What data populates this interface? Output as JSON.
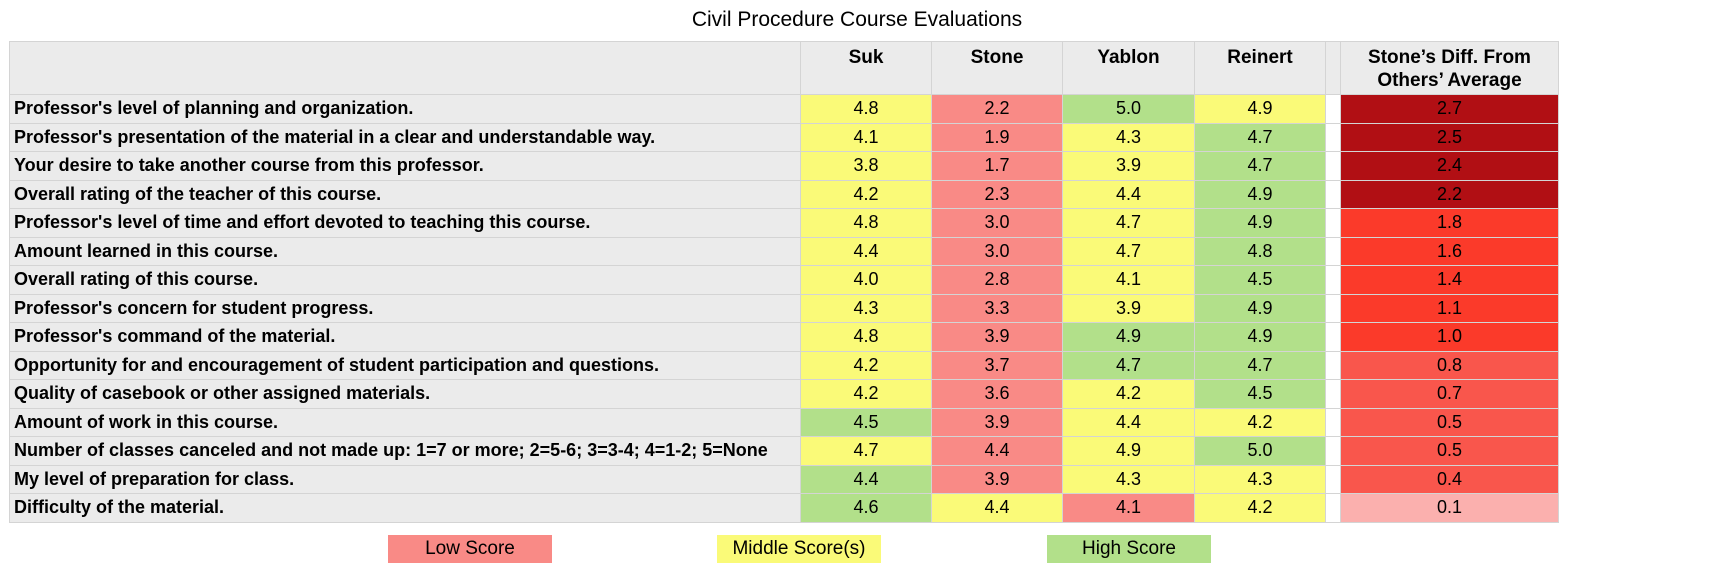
{
  "title": "Civil Procedure Course Evaluations",
  "colors": {
    "low": "#f98a86",
    "middle": "#fafa78",
    "high": "#b2e08a",
    "diff_dark": "#b10f14",
    "diff_red": "#fb3a2a",
    "diff_mid": "#f9564c",
    "diff_light": "#fbb0ae"
  },
  "chart_data": {
    "type": "table",
    "title": "Civil Procedure Course Evaluations",
    "columns": [
      "Suk",
      "Stone",
      "Yablon",
      "Reinert"
    ],
    "diff_column": "Stone’s Diff. From Others’ Average",
    "rows": [
      {
        "label": "Professor's level of planning and organization.",
        "values": [
          4.8,
          2.2,
          5.0,
          4.9
        ],
        "levels": [
          "middle",
          "low",
          "high",
          "middle"
        ],
        "diff": "2.7",
        "diff_level": "diff_dark"
      },
      {
        "label": "Professor's presentation of the material in a clear and understandable way.",
        "values": [
          4.1,
          1.9,
          4.3,
          4.7
        ],
        "levels": [
          "middle",
          "low",
          "middle",
          "high"
        ],
        "diff": "2.5",
        "diff_level": "diff_dark"
      },
      {
        "label": "Your desire to take another course from this professor.",
        "values": [
          3.8,
          1.7,
          3.9,
          4.7
        ],
        "levels": [
          "middle",
          "low",
          "middle",
          "high"
        ],
        "diff": "2.4",
        "diff_level": "diff_dark"
      },
      {
        "label": "Overall rating of the teacher of this course.",
        "values": [
          4.2,
          2.3,
          4.4,
          4.9
        ],
        "levels": [
          "middle",
          "low",
          "middle",
          "high"
        ],
        "diff": "2.2",
        "diff_level": "diff_dark"
      },
      {
        "label": "Professor's level of time and effort devoted to teaching this course.",
        "values": [
          4.8,
          3.0,
          4.7,
          4.9
        ],
        "levels": [
          "middle",
          "low",
          "middle",
          "high"
        ],
        "diff": "1.8",
        "diff_level": "diff_red"
      },
      {
        "label": "Amount learned in this course.",
        "values": [
          4.4,
          3.0,
          4.7,
          4.8
        ],
        "levels": [
          "middle",
          "low",
          "middle",
          "high"
        ],
        "diff": "1.6",
        "diff_level": "diff_red"
      },
      {
        "label": "Overall rating of this course.",
        "values": [
          4.0,
          2.8,
          4.1,
          4.5
        ],
        "levels": [
          "middle",
          "low",
          "middle",
          "high"
        ],
        "diff": "1.4",
        "diff_level": "diff_red"
      },
      {
        "label": "Professor's concern for student progress.",
        "values": [
          4.3,
          3.3,
          3.9,
          4.9
        ],
        "levels": [
          "middle",
          "low",
          "middle",
          "high"
        ],
        "diff": "1.1",
        "diff_level": "diff_red"
      },
      {
        "label": "Professor's command of the material.",
        "values": [
          4.8,
          3.9,
          4.9,
          4.9
        ],
        "levels": [
          "middle",
          "low",
          "high",
          "high"
        ],
        "diff": "1.0",
        "diff_level": "diff_red"
      },
      {
        "label": "Opportunity for and encouragement of student participation and questions.",
        "values": [
          4.2,
          3.7,
          4.7,
          4.7
        ],
        "levels": [
          "middle",
          "low",
          "high",
          "high"
        ],
        "diff": "0.8",
        "diff_level": "diff_mid"
      },
      {
        "label": "Quality of casebook or other assigned materials.",
        "values": [
          4.2,
          3.6,
          4.2,
          4.5
        ],
        "levels": [
          "middle",
          "low",
          "middle",
          "high"
        ],
        "diff": "0.7",
        "diff_level": "diff_mid"
      },
      {
        "label": "Amount of work in this course.",
        "values": [
          4.5,
          3.9,
          4.4,
          4.2
        ],
        "levels": [
          "high",
          "low",
          "middle",
          "middle"
        ],
        "diff": "0.5",
        "diff_level": "diff_mid"
      },
      {
        "label": "Number of classes canceled and not made up: 1=7 or more; 2=5-6; 3=3-4; 4=1-2; 5=None",
        "values": [
          4.7,
          4.4,
          4.9,
          5.0
        ],
        "levels": [
          "middle",
          "low",
          "middle",
          "high"
        ],
        "diff": "0.5",
        "diff_level": "diff_mid"
      },
      {
        "label": "My level of preparation for class.",
        "values": [
          4.4,
          3.9,
          4.3,
          4.3
        ],
        "levels": [
          "high",
          "low",
          "middle",
          "middle"
        ],
        "diff": "0.4",
        "diff_level": "diff_mid"
      },
      {
        "label": "Difficulty of the material.",
        "values": [
          4.6,
          4.4,
          4.1,
          4.2
        ],
        "levels": [
          "high",
          "middle",
          "low",
          "middle"
        ],
        "diff": "0.1",
        "diff_level": "diff_light"
      }
    ]
  },
  "legend": {
    "low": "Low Score",
    "middle": "Middle Score(s)",
    "high": "High Score"
  }
}
